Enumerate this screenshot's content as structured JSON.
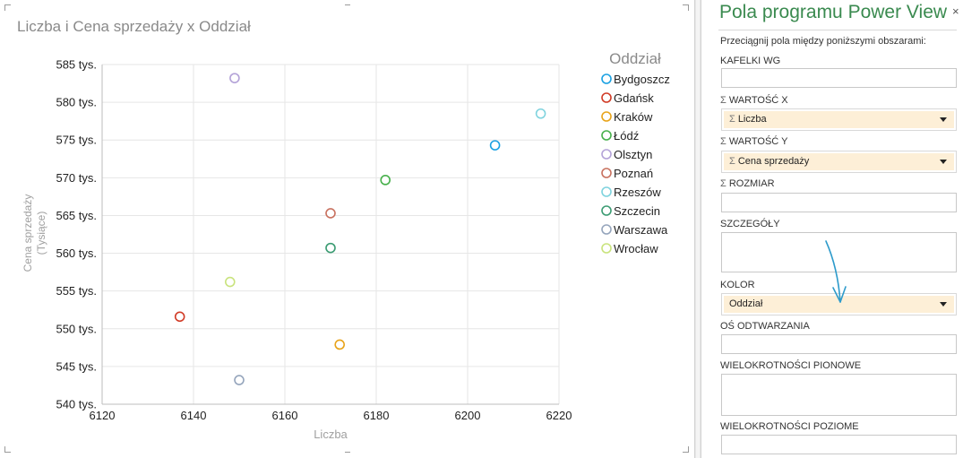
{
  "chart_data": {
    "type": "scatter",
    "title": "Liczba i Cena sprzedaży x Oddział",
    "xlabel": "Liczba",
    "ylabel": [
      "Cena sprzedaży",
      "(Tysiące)"
    ],
    "xlim": [
      6120,
      6220
    ],
    "ylim": [
      540,
      585
    ],
    "x_ticks": [
      6120,
      6140,
      6160,
      6180,
      6200,
      6220
    ],
    "y_ticks": [
      540,
      545,
      550,
      555,
      560,
      565,
      570,
      575,
      580,
      585
    ],
    "x_tick_labels": [
      "6120",
      "6140",
      "6160",
      "6180",
      "6200",
      "6220"
    ],
    "y_tick_labels": [
      "540 tys.",
      "545 tys.",
      "550 tys.",
      "555 tys.",
      "560 tys.",
      "565 tys.",
      "570 tys.",
      "575 tys.",
      "580 tys.",
      "585 tys."
    ],
    "grid": true,
    "legend_title": "Oddział",
    "legend_position": "right",
    "series": [
      {
        "name": "Bydgoszcz",
        "color": "#1BA1E2",
        "x": 6206,
        "y": 574.3
      },
      {
        "name": "Gdańsk",
        "color": "#D13B26",
        "x": 6137,
        "y": 551.6
      },
      {
        "name": "Kraków",
        "color": "#E8A319",
        "x": 6172,
        "y": 547.9
      },
      {
        "name": "Łódź",
        "color": "#47B04B",
        "x": 6182,
        "y": 569.7
      },
      {
        "name": "Olsztyn",
        "color": "#B4A3D8",
        "x": 6149,
        "y": 583.2
      },
      {
        "name": "Poznań",
        "color": "#C8715F",
        "x": 6170,
        "y": 565.3
      },
      {
        "name": "Rzeszów",
        "color": "#7FD3DE",
        "x": 6216,
        "y": 578.5
      },
      {
        "name": "Szczecin",
        "color": "#3C9C73",
        "x": 6170,
        "y": 560.7
      },
      {
        "name": "Warszawa",
        "color": "#95A5BC",
        "x": 6150,
        "y": 543.2
      },
      {
        "name": "Wrocław",
        "color": "#C9E37D",
        "x": 6148,
        "y": 556.2
      }
    ]
  },
  "panel": {
    "title": "Pola programu Power View",
    "close_icon": "×",
    "instruction": "Przeciągnij pola między poniższymi obszarami:",
    "sections": {
      "tiles_by": {
        "label": "KAFELKI WG"
      },
      "x_value": {
        "label": "WARTOŚĆ X",
        "field": "Liczba"
      },
      "y_value": {
        "label": "WARTOŚĆ Y",
        "field": "Cena sprzedaży"
      },
      "size": {
        "label": "ROZMIAR"
      },
      "details": {
        "label": "SZCZEGÓŁY"
      },
      "color": {
        "label": "KOLOR",
        "field": "Oddział"
      },
      "play_axis": {
        "label": "OŚ ODTWARZANIA"
      },
      "vertical_multiples": {
        "label": "WIELOKROTNOŚCI PIONOWE"
      },
      "horizontal_multiples": {
        "label": "WIELOKROTNOŚCI POZIOME"
      }
    },
    "sigma_symbol": "Σ",
    "arrow_color": "#2E9BCB"
  }
}
